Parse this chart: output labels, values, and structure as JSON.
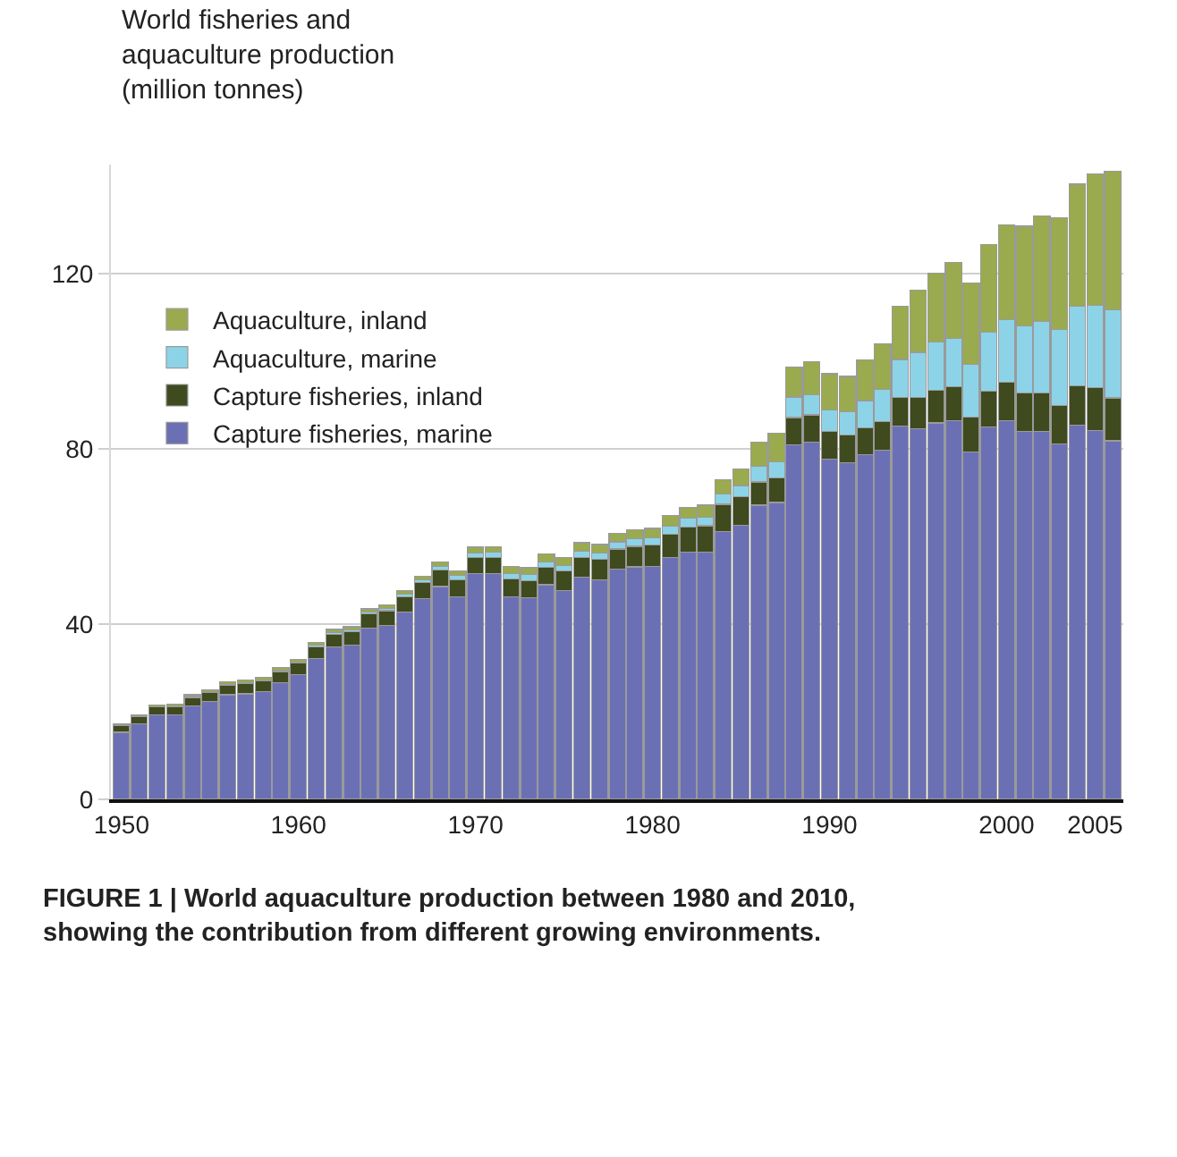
{
  "chart_data": {
    "type": "bar",
    "title": "World fisheries and aquaculture production (million tonnes)",
    "stacked": true,
    "x": [
      1950,
      1951,
      1952,
      1953,
      1954,
      1955,
      1956,
      1957,
      1958,
      1959,
      1960,
      1961,
      1962,
      1963,
      1964,
      1965,
      1966,
      1967,
      1968,
      1969,
      1970,
      1971,
      1972,
      1973,
      1974,
      1975,
      1976,
      1977,
      1978,
      1979,
      1980,
      1981,
      1982,
      1983,
      1984,
      1985,
      1986,
      1987,
      1988,
      1989,
      1990,
      1991,
      1992,
      1993,
      1994,
      1995,
      1996,
      1997,
      1998,
      1999,
      2000,
      2001,
      2002,
      2003,
      2004,
      2005,
      2006
    ],
    "series": [
      {
        "name": "Capture fisheries, marine",
        "color": "#6b70b5",
        "values": [
          15.3,
          17.2,
          19.3,
          19.3,
          21.3,
          22.3,
          23.9,
          24.1,
          24.6,
          26.7,
          28.5,
          32.1,
          34.8,
          35.3,
          39.1,
          39.8,
          42.8,
          45.9,
          48.6,
          46.3,
          51.6,
          51.6,
          46.3,
          46.0,
          49.0,
          47.7,
          50.7,
          50.2,
          52.6,
          53.1,
          53.2,
          55.2,
          56.4,
          56.5,
          61.2,
          62.6,
          67.2,
          67.8,
          81.0,
          81.6,
          77.7,
          76.9,
          78.8,
          79.7,
          85.2,
          84.6,
          86.0,
          86.5,
          79.3,
          85.1,
          86.5,
          84.0,
          84.1,
          81.2,
          85.4,
          84.3,
          81.9
        ]
      },
      {
        "name": "Capture fisheries, inland",
        "color": "#3f4a1e",
        "values": [
          1.6,
          1.7,
          1.8,
          1.9,
          2.0,
          2.1,
          2.2,
          2.3,
          2.4,
          2.5,
          2.6,
          2.7,
          2.9,
          3.0,
          3.2,
          3.3,
          3.5,
          3.6,
          3.8,
          3.9,
          3.6,
          3.7,
          4.0,
          4.0,
          4.0,
          4.4,
          4.5,
          4.6,
          4.6,
          4.7,
          4.9,
          5.3,
          5.8,
          6.0,
          6.2,
          6.6,
          5.3,
          5.6,
          6.2,
          6.2,
          6.3,
          6.3,
          6.1,
          6.6,
          6.6,
          7.2,
          7.5,
          7.7,
          8.0,
          8.2,
          8.8,
          8.8,
          8.7,
          8.8,
          9.0,
          9.7,
          9.8
        ]
      },
      {
        "name": "Aquaculture, marine",
        "color": "#8dd3e8",
        "values": [
          0.1,
          0.1,
          0.1,
          0.2,
          0.2,
          0.2,
          0.2,
          0.3,
          0.3,
          0.3,
          0.3,
          0.4,
          0.4,
          0.4,
          0.5,
          0.5,
          0.6,
          0.6,
          0.8,
          0.9,
          1.1,
          1.1,
          1.3,
          1.3,
          1.3,
          1.3,
          1.5,
          1.5,
          1.6,
          1.7,
          1.7,
          1.9,
          2.0,
          2.0,
          2.3,
          2.5,
          3.5,
          3.7,
          4.7,
          4.6,
          4.9,
          5.3,
          6.2,
          7.4,
          8.7,
          10.3,
          11.0,
          11.0,
          12.1,
          13.4,
          14.3,
          15.4,
          16.3,
          17.4,
          18.3,
          18.9,
          20.1
        ]
      },
      {
        "name": "Aquaculture, inland",
        "color": "#9aaa4e",
        "values": [
          0.3,
          0.3,
          0.3,
          0.4,
          0.4,
          0.4,
          0.5,
          0.5,
          0.5,
          0.6,
          0.6,
          0.6,
          0.7,
          0.7,
          0.7,
          0.8,
          0.8,
          0.9,
          1.0,
          1.1,
          1.3,
          1.3,
          1.6,
          1.6,
          1.7,
          1.8,
          1.9,
          1.9,
          2.0,
          2.0,
          2.1,
          2.4,
          2.5,
          2.7,
          3.3,
          3.8,
          5.6,
          6.5,
          6.9,
          7.6,
          8.3,
          8.1,
          9.2,
          10.4,
          12.2,
          14.2,
          15.7,
          17.4,
          18.6,
          20.0,
          21.6,
          22.7,
          24.1,
          25.5,
          27.8,
          29.9,
          31.7
        ]
      }
    ],
    "xlim": [
      1949.4,
      2006.6
    ],
    "xticks": [
      1950,
      1960,
      1970,
      1980,
      1990,
      2000,
      2005
    ],
    "ylim": [
      0,
      145
    ],
    "yticks": [
      0,
      40,
      80,
      120
    ],
    "grid": "y",
    "legend": "top left",
    "annotations": [
      "FIGURE 1 | World aquaculture production between 1980 and 2010, showing the contribution from different growing environments."
    ]
  }
}
